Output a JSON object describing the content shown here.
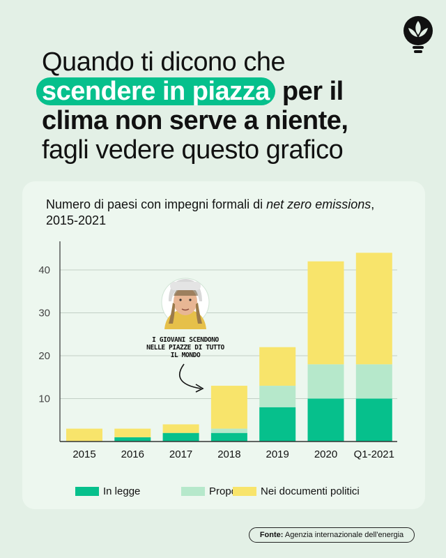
{
  "headline": {
    "line1": "Quando ti dicono che",
    "highlight": "scendere in piazza",
    "line2_rest": "per il",
    "line3": "clima non serve a niente,",
    "line4": "fagli vedere questo grafico"
  },
  "logo_icon": "leaf-lightbulb-icon",
  "chart_data": {
    "type": "bar",
    "stacked": true,
    "title_main": "Numero di paesi con impegni formali di ",
    "title_italic": "net zero emissions",
    "title_tail": ", 2015-2021",
    "categories": [
      "2015",
      "2016",
      "2017",
      "2018",
      "2019",
      "2020",
      "Q1-2021"
    ],
    "series": [
      {
        "name": "In legge",
        "color": "#06c08c",
        "values": [
          0,
          1,
          2,
          2,
          8,
          10,
          10
        ]
      },
      {
        "name": "Proposti",
        "color": "#b6e8cb",
        "values": [
          0,
          0,
          0,
          1,
          5,
          8,
          8
        ]
      },
      {
        "name": "Nei documenti politici",
        "color": "#f8e46b",
        "values": [
          3,
          2,
          2,
          10,
          9,
          24,
          26
        ]
      }
    ],
    "yticks": [
      10,
      20,
      30,
      40
    ],
    "ylim": [
      0,
      46
    ],
    "grid": true,
    "legend_position": "bottom",
    "annotation": {
      "text_lines": [
        "I GIOVANI SCENDONO",
        "NELLE PIAZZE DI TUTTO",
        "IL MONDO"
      ],
      "points_to": "2018"
    }
  },
  "source": {
    "label": "Fonte:",
    "text": "Agenzia internazionale dell'energia"
  }
}
